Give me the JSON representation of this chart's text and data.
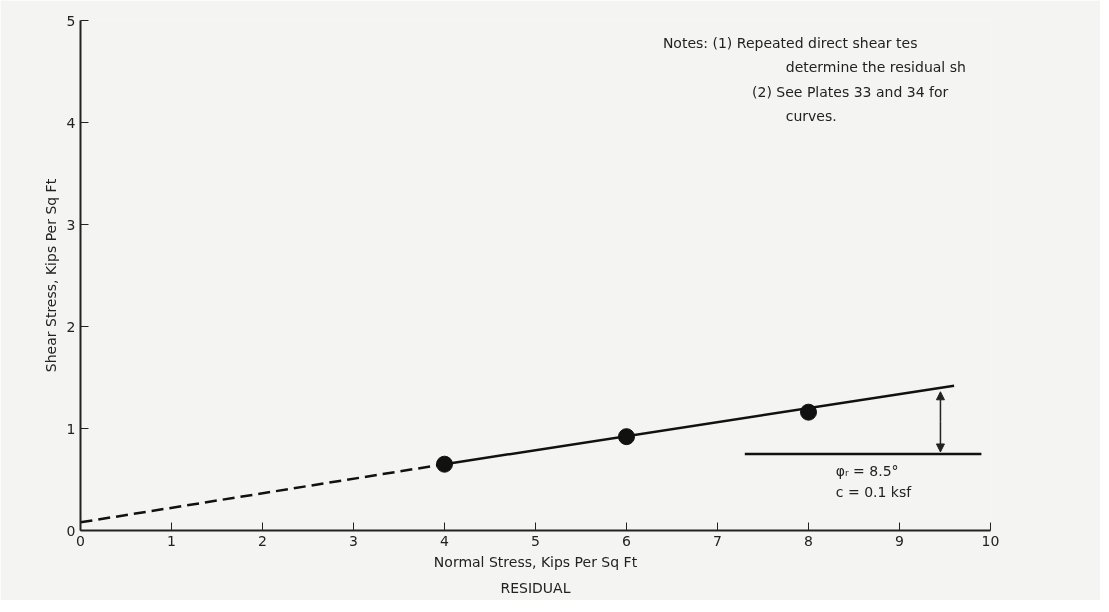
{
  "chart_data": {
    "type": "scatter",
    "title": "RESIDUAL",
    "xlabel": "Normal Stress, Kips Per Sq Ft",
    "ylabel": "Shear Stress, Kips Per Sq Ft",
    "xlim": [
      0,
      10
    ],
    "ylim": [
      0,
      5
    ],
    "xticks": [
      0,
      1,
      2,
      3,
      4,
      5,
      6,
      7,
      8,
      9,
      10
    ],
    "yticks": [
      0,
      1,
      2,
      3,
      4,
      5
    ],
    "grid": false,
    "series": [
      {
        "type": "line",
        "x": [
          0,
          4
        ],
        "values": [
          0.08,
          0.65
        ],
        "color": "#111111",
        "line_style": "dashed",
        "marker": "none"
      },
      {
        "type": "line",
        "x": [
          4,
          9.6
        ],
        "values": [
          0.65,
          1.42
        ],
        "color": "#111111",
        "line_style": "solid",
        "marker": "none"
      },
      {
        "type": "line",
        "x": [
          7.3,
          9.9
        ],
        "values": [
          0.75,
          0.75
        ],
        "color": "#111111",
        "line_style": "solid",
        "marker": "none"
      },
      {
        "x": [
          4,
          6,
          8
        ],
        "values": [
          0.65,
          0.92,
          1.16
        ],
        "color": "#111111",
        "marker": "circle"
      }
    ],
    "annotations": [
      "Notes:  (1)  Repeated direct shear tes",
      "determine the residual sh",
      "(2)  See Plates 33 and 34 for",
      "curves.",
      "φᵣ = 8.5°",
      "c = 0.1 ksf"
    ]
  }
}
